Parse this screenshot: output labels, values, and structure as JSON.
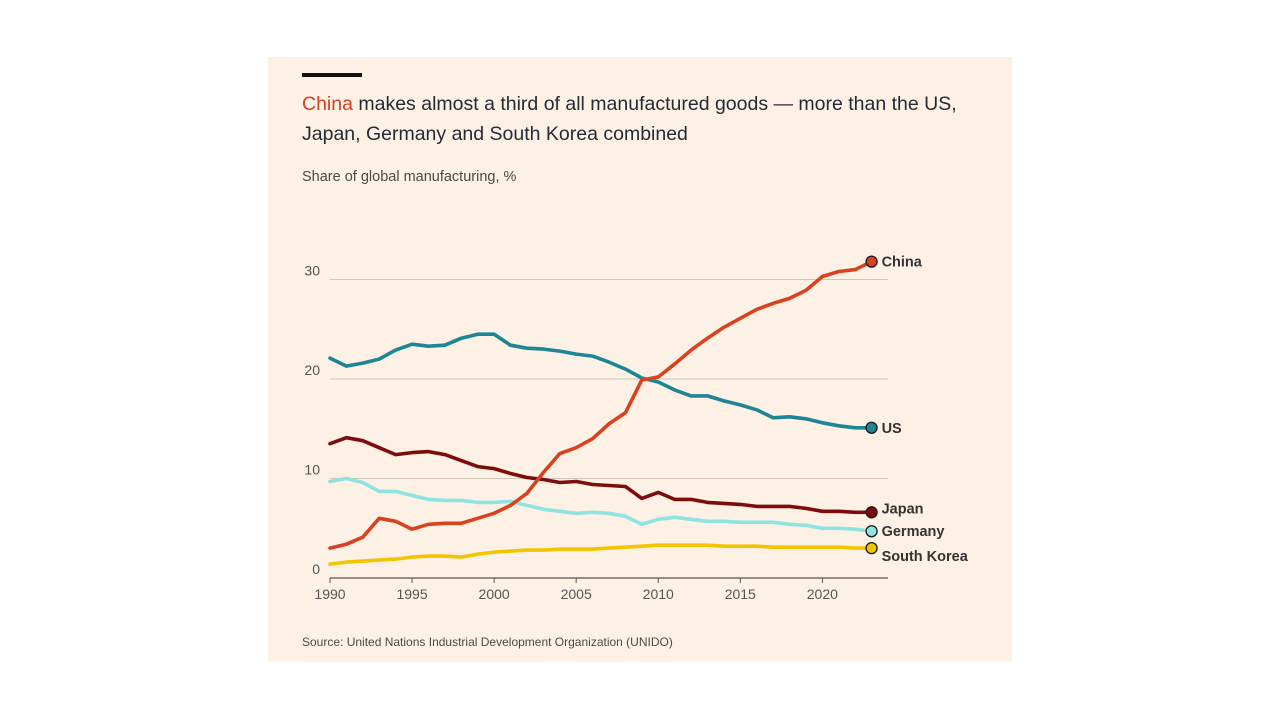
{
  "title_highlight": "China",
  "title_rest": " makes almost a third of all manufactured goods — more than the US, Japan, Germany and South Korea combined",
  "subtitle": "Share of global manufacturing, %",
  "source": "Source: United Nations Industrial Development Organization (UNIDO)",
  "chart_data": {
    "type": "line",
    "title": "China makes almost a third of all manufactured goods — more than the US, Japan, Germany and South Korea combined",
    "ylabel": "Share of global manufacturing, %",
    "xlim": [
      1990,
      2024
    ],
    "ylim": [
      0,
      33
    ],
    "x_ticks": [
      1990,
      1995,
      2000,
      2005,
      2010,
      2015,
      2020
    ],
    "y_ticks": [
      0,
      10,
      20,
      30
    ],
    "grid": "horizontal",
    "legend": "direct labels at line ends",
    "x": [
      1990,
      1991,
      1992,
      1993,
      1994,
      1995,
      1996,
      1997,
      1998,
      1999,
      2000,
      2001,
      2002,
      2003,
      2004,
      2005,
      2006,
      2007,
      2008,
      2009,
      2010,
      2011,
      2012,
      2013,
      2014,
      2015,
      2016,
      2017,
      2018,
      2019,
      2020,
      2021,
      2022,
      2023
    ],
    "series": [
      {
        "name": "China",
        "color": "#d9421f",
        "values": [
          3.0,
          3.4,
          4.1,
          6.0,
          5.7,
          4.9,
          5.4,
          5.5,
          5.5,
          6.0,
          6.5,
          7.3,
          8.5,
          10.6,
          12.5,
          13.1,
          14.0,
          15.5,
          16.6,
          19.9,
          20.2,
          21.5,
          22.9,
          24.1,
          25.2,
          26.1,
          27.0,
          27.6,
          28.1,
          28.9,
          30.3,
          30.8,
          31.0,
          31.8
        ]
      },
      {
        "name": "US",
        "color": "#1d8594",
        "values": [
          22.1,
          21.3,
          21.6,
          22.0,
          22.9,
          23.5,
          23.3,
          23.4,
          24.1,
          24.5,
          24.5,
          23.4,
          23.1,
          23.0,
          22.8,
          22.5,
          22.3,
          21.7,
          21.0,
          20.1,
          19.7,
          18.9,
          18.3,
          18.3,
          17.8,
          17.4,
          16.9,
          16.1,
          16.2,
          16.0,
          15.6,
          15.3,
          15.1,
          15.1
        ]
      },
      {
        "name": "Japan",
        "color": "#7d0d0d",
        "values": [
          13.5,
          14.1,
          13.8,
          13.1,
          12.4,
          12.6,
          12.7,
          12.4,
          11.8,
          11.2,
          11.0,
          10.5,
          10.1,
          9.9,
          9.6,
          9.7,
          9.4,
          9.3,
          9.2,
          8.0,
          8.6,
          7.9,
          7.9,
          7.6,
          7.5,
          7.4,
          7.2,
          7.2,
          7.2,
          7.0,
          6.7,
          6.7,
          6.6,
          6.6
        ]
      },
      {
        "name": "Germany",
        "color": "#8fe3e0",
        "values": [
          9.7,
          10.0,
          9.6,
          8.7,
          8.7,
          8.3,
          7.9,
          7.8,
          7.8,
          7.6,
          7.6,
          7.7,
          7.3,
          6.9,
          6.7,
          6.5,
          6.6,
          6.5,
          6.2,
          5.4,
          5.9,
          6.1,
          5.9,
          5.7,
          5.7,
          5.6,
          5.6,
          5.6,
          5.4,
          5.3,
          5.0,
          5.0,
          4.9,
          4.7
        ]
      },
      {
        "name": "South Korea",
        "color": "#f2c500",
        "values": [
          1.4,
          1.6,
          1.7,
          1.8,
          1.9,
          2.1,
          2.2,
          2.2,
          2.1,
          2.4,
          2.6,
          2.7,
          2.8,
          2.8,
          2.9,
          2.9,
          2.9,
          3.0,
          3.1,
          3.2,
          3.3,
          3.3,
          3.3,
          3.3,
          3.2,
          3.2,
          3.2,
          3.1,
          3.1,
          3.1,
          3.1,
          3.1,
          3.0,
          3.0
        ]
      }
    ]
  }
}
